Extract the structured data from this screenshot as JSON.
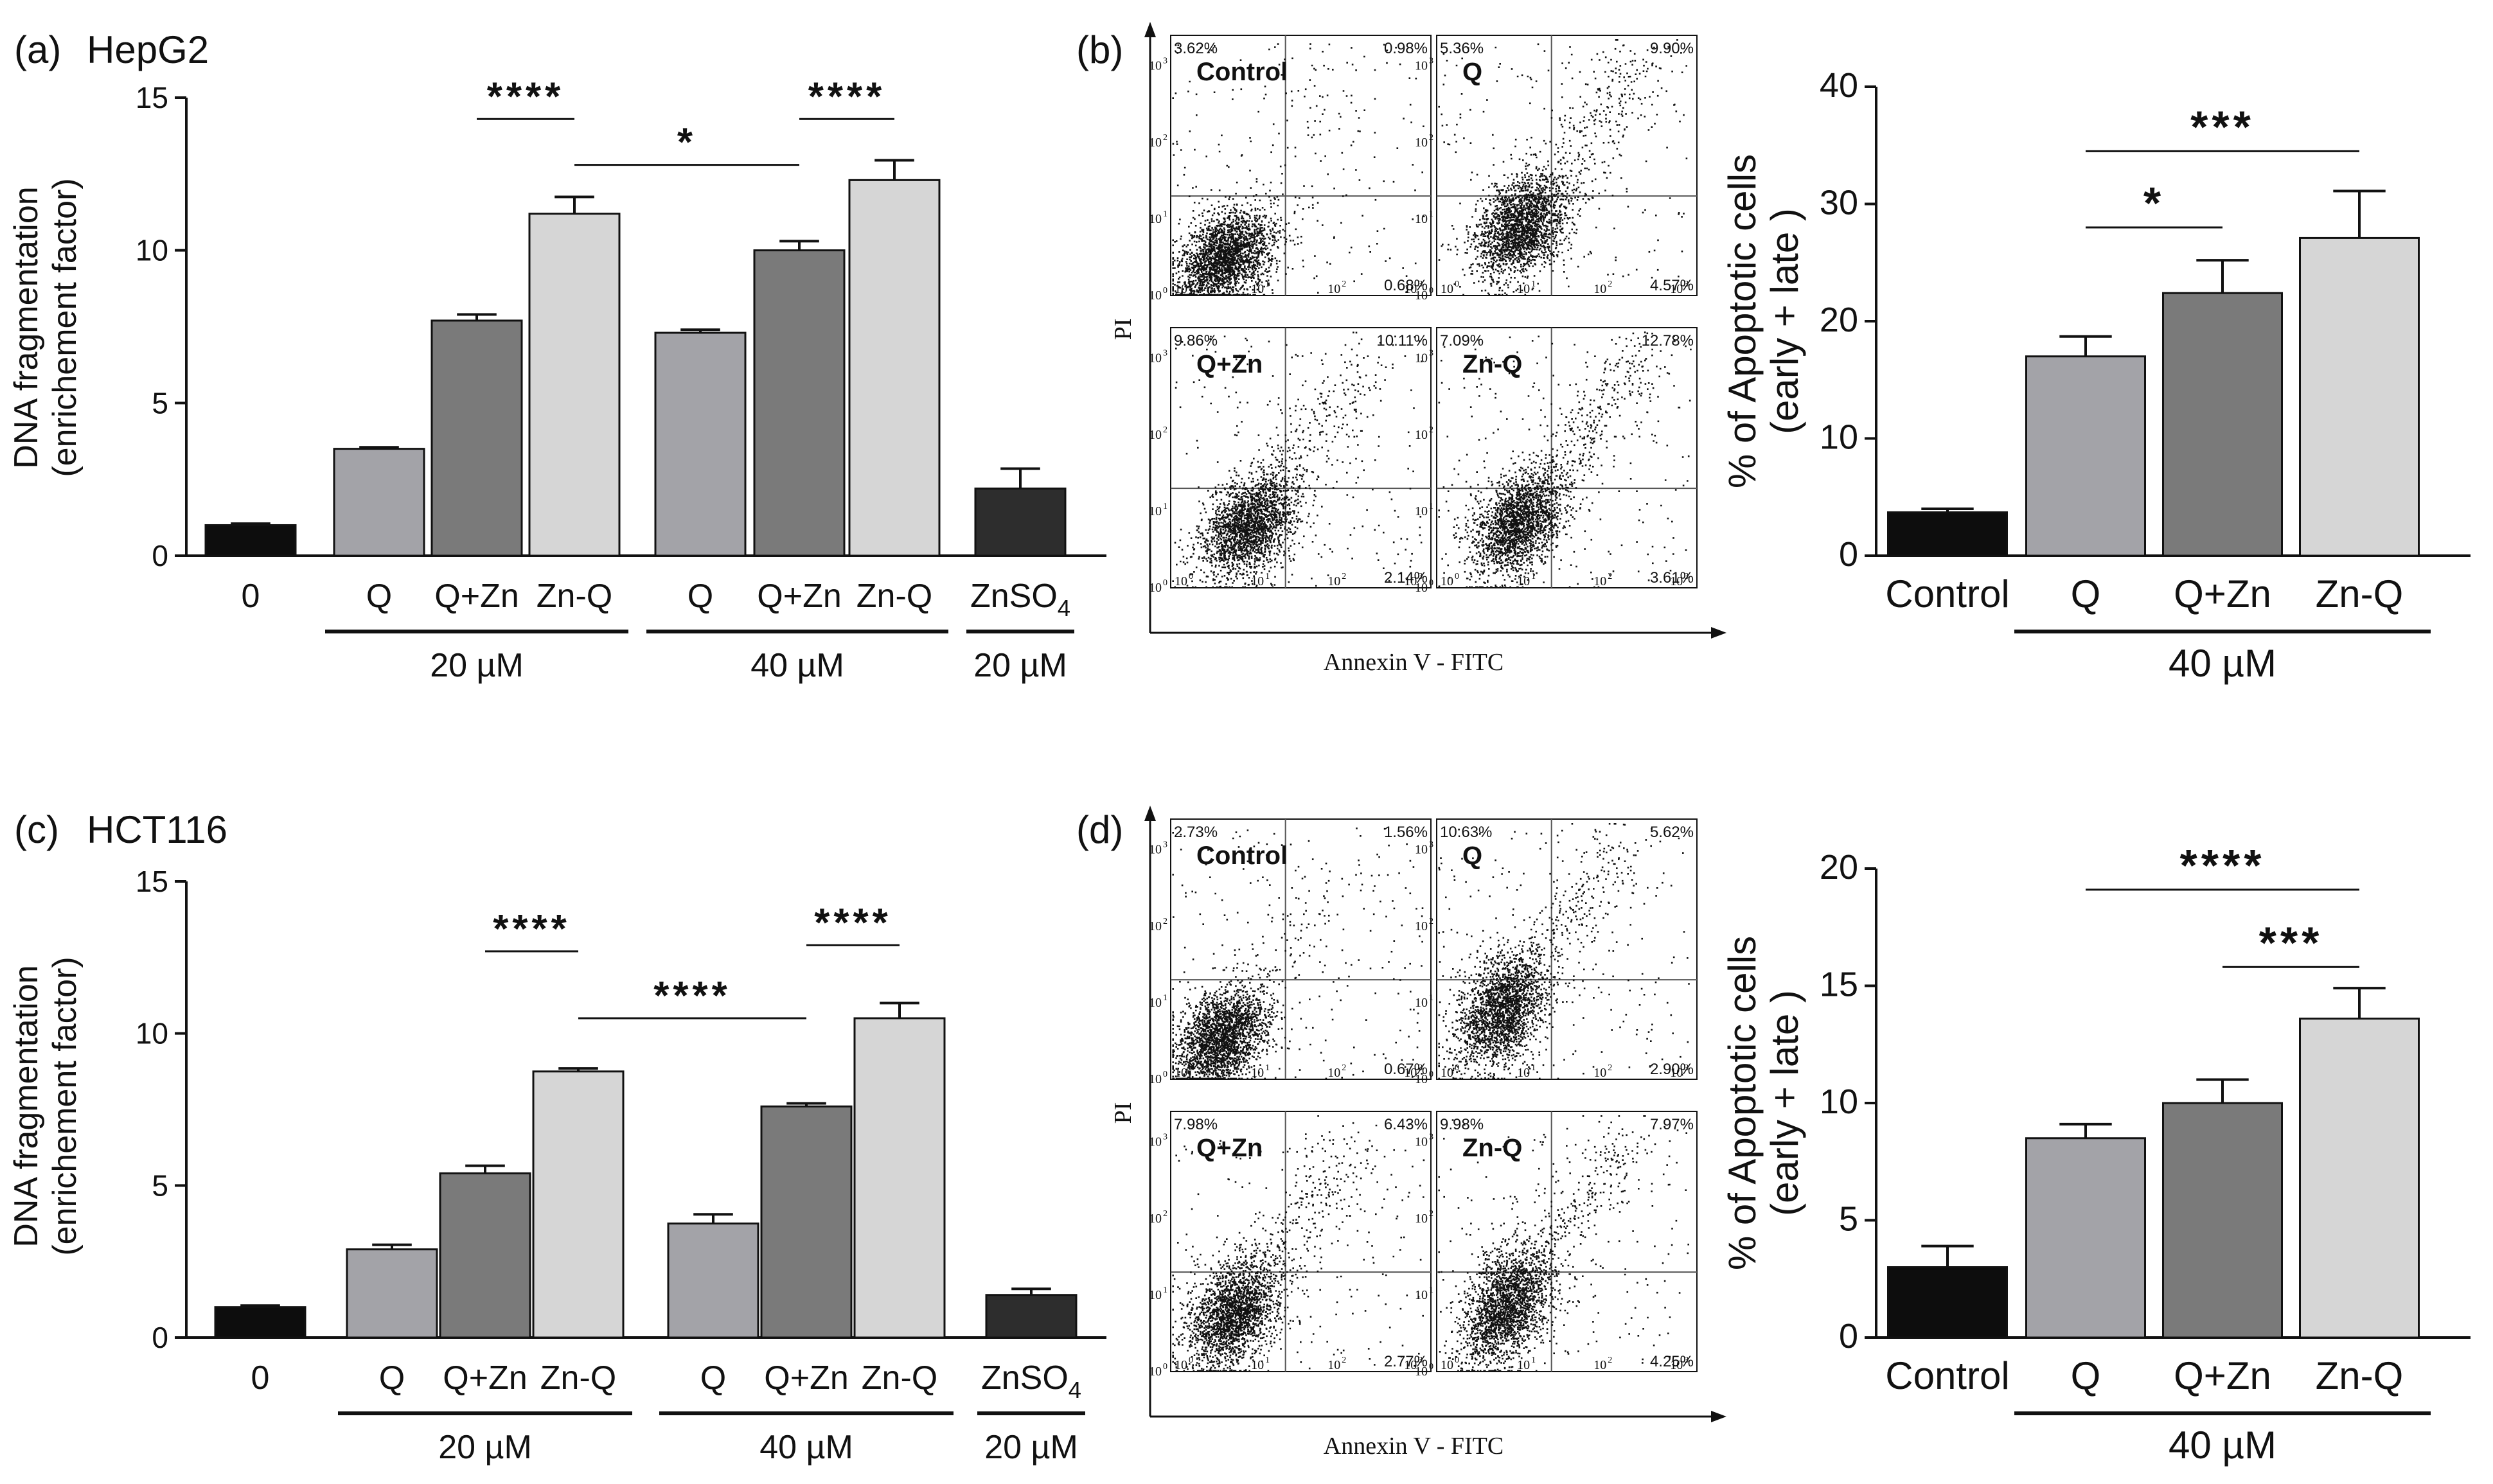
{
  "colors": {
    "control": "#0d0d0d",
    "q": "#a3a3a8",
    "qzn": "#7a7a7a",
    "znq": "#d6d6d6",
    "znso4": "#2d2d2d",
    "axis": "#111111",
    "quadline": "#555555",
    "dots": "#111111"
  },
  "panels": {
    "a": {
      "label": "(a)",
      "cell": "HepG2"
    },
    "b": {
      "label": "(b)"
    },
    "c": {
      "label": "(c)",
      "cell": "HCT116"
    },
    "d": {
      "label": "(d)"
    }
  },
  "chart_data": [
    {
      "id": "a",
      "type": "bar",
      "title": "(a) HepG2",
      "ylabel": [
        "DNA fragmentation",
        "(enrichement factor)"
      ],
      "ylim": [
        0,
        15
      ],
      "yticks": [
        0,
        5,
        10,
        15
      ],
      "bars": [
        {
          "label": "0",
          "value": 1.0,
          "err": 0.05,
          "color": "control"
        },
        {
          "label": "Q",
          "value": 3.5,
          "err": 0.05,
          "color": "q"
        },
        {
          "label": "Q+Zn",
          "value": 7.7,
          "err": 0.2,
          "color": "qzn"
        },
        {
          "label": "Zn-Q",
          "value": 11.2,
          "err": 0.55,
          "color": "znq"
        },
        {
          "label": "Q",
          "value": 7.3,
          "err": 0.1,
          "color": "q"
        },
        {
          "label": "Q+Zn",
          "value": 10.0,
          "err": 0.3,
          "color": "qzn"
        },
        {
          "label": "Zn-Q",
          "value": 12.3,
          "err": 0.65,
          "color": "znq"
        },
        {
          "label": "ZnSO4",
          "value": 2.2,
          "err": 0.65,
          "color": "znso4"
        }
      ],
      "groups": [
        {
          "label": "20 µM",
          "bars": [
            1,
            3
          ]
        },
        {
          "label": "40 µM",
          "bars": [
            4,
            6
          ]
        },
        {
          "label": "20 µM",
          "bars": [
            7,
            7
          ]
        }
      ],
      "significance": [
        {
          "from": 2,
          "to": 3,
          "y": 14.3,
          "label": "****"
        },
        {
          "from": 3,
          "to": 5,
          "y": 12.8,
          "label": "*"
        },
        {
          "from": 5,
          "to": 6,
          "y": 14.3,
          "label": "****"
        }
      ]
    },
    {
      "id": "b",
      "type": "bar",
      "title": "",
      "ylabel": [
        "% of Apoptotic cells",
        "(early + late )"
      ],
      "ylim": [
        0,
        40
      ],
      "yticks": [
        0,
        10,
        20,
        30,
        40
      ],
      "bars": [
        {
          "label": "Control",
          "value": 3.7,
          "err": 0.3,
          "color": "control"
        },
        {
          "label": "Q",
          "value": 17.0,
          "err": 1.7,
          "color": "q"
        },
        {
          "label": "Q+Zn",
          "value": 22.4,
          "err": 2.8,
          "color": "qzn"
        },
        {
          "label": "Zn-Q",
          "value": 27.1,
          "err": 4.0,
          "color": "znq"
        }
      ],
      "groups": [
        {
          "label": "40 µM",
          "bars": [
            1,
            3
          ]
        }
      ],
      "significance": [
        {
          "from": 1,
          "to": 2,
          "y": 28.0,
          "label": "*"
        },
        {
          "from": 1,
          "to": 3,
          "y": 34.5,
          "label": "***"
        }
      ]
    },
    {
      "id": "c",
      "type": "bar",
      "title": "(c) HCT116",
      "ylabel": [
        "DNA fragmentation",
        "(enrichement factor)"
      ],
      "ylim": [
        0,
        15
      ],
      "yticks": [
        0,
        5,
        10,
        15
      ],
      "bars": [
        {
          "label": "0",
          "value": 1.0,
          "err": 0.05,
          "color": "control"
        },
        {
          "label": "Q",
          "value": 2.9,
          "err": 0.15,
          "color": "q"
        },
        {
          "label": "Q+Zn",
          "value": 5.4,
          "err": 0.25,
          "color": "qzn"
        },
        {
          "label": "Zn-Q",
          "value": 8.75,
          "err": 0.1,
          "color": "znq"
        },
        {
          "label": "Q",
          "value": 3.75,
          "err": 0.3,
          "color": "q"
        },
        {
          "label": "Q+Zn",
          "value": 7.6,
          "err": 0.1,
          "color": "qzn"
        },
        {
          "label": "Zn-Q",
          "value": 10.5,
          "err": 0.5,
          "color": "znq"
        },
        {
          "label": "ZnSO4",
          "value": 1.4,
          "err": 0.2,
          "color": "znso4"
        }
      ],
      "groups": [
        {
          "label": "20 µM",
          "bars": [
            1,
            3
          ]
        },
        {
          "label": "40 µM",
          "bars": [
            4,
            6
          ]
        },
        {
          "label": "20 µM",
          "bars": [
            7,
            7
          ]
        }
      ],
      "significance": [
        {
          "from": 2,
          "to": 3,
          "y": 12.7,
          "label": "****"
        },
        {
          "from": 3,
          "to": 5,
          "y": 10.5,
          "label": "****"
        },
        {
          "from": 5,
          "to": 6,
          "y": 12.9,
          "label": "****"
        }
      ]
    },
    {
      "id": "d",
      "type": "bar",
      "title": "",
      "ylabel": [
        "% of Apoptotic cells",
        "(early + late )"
      ],
      "ylim": [
        0,
        20
      ],
      "yticks": [
        0,
        5,
        10,
        15,
        20
      ],
      "bars": [
        {
          "label": "Control",
          "value": 3.0,
          "err": 0.9,
          "color": "control"
        },
        {
          "label": "Q",
          "value": 8.5,
          "err": 0.6,
          "color": "q"
        },
        {
          "label": "Q+Zn",
          "value": 10.0,
          "err": 1.0,
          "color": "qzn"
        },
        {
          "label": "Zn-Q",
          "value": 13.6,
          "err": 1.3,
          "color": "znq"
        }
      ],
      "groups": [
        {
          "label": "40 µM",
          "bars": [
            1,
            3
          ]
        }
      ],
      "significance": [
        {
          "from": 1,
          "to": 3,
          "y": 19.1,
          "label": "****"
        },
        {
          "from": 2,
          "to": 3,
          "y": 15.8,
          "label": "***"
        }
      ]
    },
    {
      "id": "b-flow",
      "type": "scatter",
      "ylabel": "PI",
      "xlabel": "Annexin V - FITC",
      "tick_labels": [
        "10",
        "10",
        "10",
        "10"
      ],
      "tick_exponents": [
        "0",
        "1",
        "2",
        "3"
      ],
      "quadrant_gate": [
        1.5,
        1.3
      ],
      "plots": [
        {
          "name": "Control",
          "ul": "3.62%",
          "ur": "0.98%",
          "lr": "0.68%",
          "cluster": [
            0.7,
            0.5
          ],
          "spread": [
            0.4,
            0.35
          ],
          "tail": 0.05
        },
        {
          "name": "Q",
          "ul": "5.36%",
          "ur": "9.90%",
          "lr": "4.57%",
          "cluster": [
            1.1,
            0.9
          ],
          "spread": [
            0.35,
            0.45
          ],
          "tail": 0.5
        },
        {
          "name": "Q+Zn",
          "ul": "9.86%",
          "ur": "10.11%",
          "lr": "2.14%",
          "cluster": [
            1.0,
            0.8
          ],
          "spread": [
            0.35,
            0.45
          ],
          "tail": 0.45
        },
        {
          "name": "Zn-Q",
          "ul": "7.09%",
          "ur": "12.78%",
          "lr": "3.61%",
          "cluster": [
            1.05,
            0.85
          ],
          "spread": [
            0.35,
            0.45
          ],
          "tail": 0.55
        }
      ]
    },
    {
      "id": "d-flow",
      "type": "scatter",
      "ylabel": "PI",
      "xlabel": "Annexin V - FITC",
      "tick_labels": [
        "10",
        "10",
        "10",
        "10"
      ],
      "tick_exponents": [
        "0",
        "1",
        "2",
        "3"
      ],
      "quadrant_gate": [
        1.5,
        1.3
      ],
      "plots": [
        {
          "name": "Control",
          "ul": "2.73%",
          "ur": "1.56%",
          "lr": "0.67%",
          "cluster": [
            0.65,
            0.55
          ],
          "spread": [
            0.35,
            0.4
          ],
          "tail": 0.15
        },
        {
          "name": "Q",
          "ul": "10.63%",
          "ur": "5.62%",
          "lr": "2.90%",
          "cluster": [
            0.85,
            0.9
          ],
          "spread": [
            0.3,
            0.55
          ],
          "tail": 0.5
        },
        {
          "name": "Q+Zn",
          "ul": "7.98%",
          "ur": "6.43%",
          "lr": "2.77%",
          "cluster": [
            0.8,
            0.75
          ],
          "spread": [
            0.3,
            0.5
          ],
          "tail": 0.45
        },
        {
          "name": "Zn-Q",
          "ul": "9.98%",
          "ur": "7.97%",
          "lr": "4.25%",
          "cluster": [
            0.9,
            0.85
          ],
          "spread": [
            0.3,
            0.55
          ],
          "tail": 0.5
        }
      ]
    }
  ]
}
